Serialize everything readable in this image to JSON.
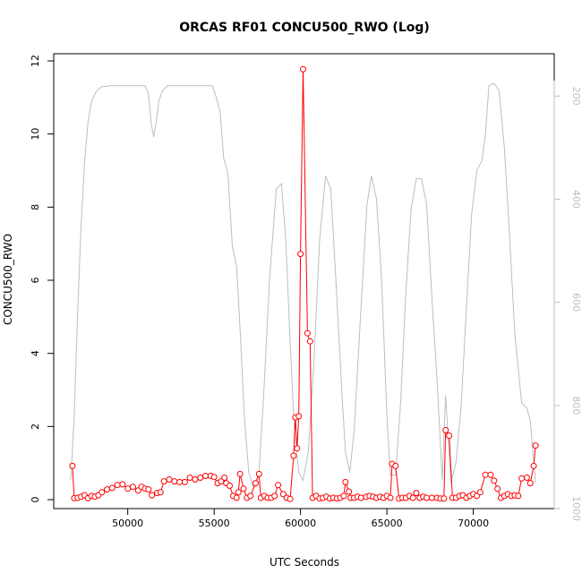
{
  "chart_data": {
    "type": "line",
    "title": "ORCAS RF01 CONCU500_RWO (Log)",
    "xlabel": "UTC Seconds",
    "ylabel": "CONCU500_RWO",
    "xlim": [
      46500,
      74000
    ],
    "ylim": [
      0,
      12
    ],
    "y2lim": [
      1000,
      170
    ],
    "y2_inverted": true,
    "x_ticks": [
      50000,
      55000,
      60000,
      65000,
      70000
    ],
    "y_ticks": [
      0,
      2,
      4,
      6,
      8,
      10,
      12
    ],
    "y2_ticks": [
      200,
      400,
      600,
      800,
      1000
    ],
    "grid": false,
    "colors": {
      "primary": "#ff0000",
      "secondary": "#bebebe",
      "axis": "#000000"
    },
    "series": [
      {
        "axis": "left",
        "style": "points-connected",
        "color": "#ff0000",
        "points": [
          [
            46800,
            0.92
          ],
          [
            46900,
            0.04
          ],
          [
            47100,
            0.05
          ],
          [
            47300,
            0.08
          ],
          [
            47500,
            0.12
          ],
          [
            47700,
            0.04
          ],
          [
            47900,
            0.1
          ],
          [
            48100,
            0.08
          ],
          [
            48300,
            0.12
          ],
          [
            48500,
            0.2
          ],
          [
            48800,
            0.28
          ],
          [
            49100,
            0.32
          ],
          [
            49400,
            0.4
          ],
          [
            49700,
            0.42
          ],
          [
            50000,
            0.3
          ],
          [
            50300,
            0.35
          ],
          [
            50600,
            0.25
          ],
          [
            50800,
            0.35
          ],
          [
            51000,
            0.3
          ],
          [
            51200,
            0.28
          ],
          [
            51400,
            0.12
          ],
          [
            51700,
            0.18
          ],
          [
            51900,
            0.2
          ],
          [
            52100,
            0.5
          ],
          [
            52400,
            0.55
          ],
          [
            52700,
            0.5
          ],
          [
            53000,
            0.48
          ],
          [
            53300,
            0.48
          ],
          [
            53600,
            0.6
          ],
          [
            53900,
            0.55
          ],
          [
            54200,
            0.6
          ],
          [
            54500,
            0.65
          ],
          [
            54800,
            0.65
          ],
          [
            55000,
            0.62
          ],
          [
            55200,
            0.45
          ],
          [
            55400,
            0.5
          ],
          [
            55600,
            0.6
          ],
          [
            55700,
            0.45
          ],
          [
            55900,
            0.38
          ],
          [
            56100,
            0.1
          ],
          [
            56300,
            0.05
          ],
          [
            56400,
            0.2
          ],
          [
            56500,
            0.7
          ],
          [
            56700,
            0.3
          ],
          [
            56900,
            0.05
          ],
          [
            57100,
            0.1
          ],
          [
            57400,
            0.45
          ],
          [
            57600,
            0.7
          ],
          [
            57700,
            0.05
          ],
          [
            57900,
            0.1
          ],
          [
            58100,
            0.05
          ],
          [
            58300,
            0.05
          ],
          [
            58500,
            0.1
          ],
          [
            58700,
            0.4
          ],
          [
            59000,
            0.15
          ],
          [
            59200,
            0.05
          ],
          [
            59400,
            0.02
          ],
          [
            59600,
            1.2
          ],
          [
            59700,
            2.25
          ],
          [
            59800,
            1.4
          ],
          [
            59900,
            2.28
          ],
          [
            60000,
            6.72
          ],
          [
            60150,
            11.77
          ],
          [
            60400,
            4.55
          ],
          [
            60550,
            4.33
          ],
          [
            60700,
            0.05
          ],
          [
            60900,
            0.1
          ],
          [
            61100,
            0.03
          ],
          [
            61300,
            0.05
          ],
          [
            61500,
            0.08
          ],
          [
            61700,
            0.03
          ],
          [
            61900,
            0.05
          ],
          [
            62100,
            0.03
          ],
          [
            62300,
            0.05
          ],
          [
            62500,
            0.1
          ],
          [
            62600,
            0.48
          ],
          [
            62800,
            0.22
          ],
          [
            62900,
            0.05
          ],
          [
            63100,
            0.05
          ],
          [
            63300,
            0.08
          ],
          [
            63500,
            0.05
          ],
          [
            63800,
            0.08
          ],
          [
            64000,
            0.1
          ],
          [
            64200,
            0.08
          ],
          [
            64400,
            0.05
          ],
          [
            64600,
            0.08
          ],
          [
            64800,
            0.05
          ],
          [
            65000,
            0.1
          ],
          [
            65200,
            0.05
          ],
          [
            65300,
            0.98
          ],
          [
            65500,
            0.92
          ],
          [
            65700,
            0.03
          ],
          [
            65900,
            0.05
          ],
          [
            66100,
            0.05
          ],
          [
            66300,
            0.1
          ],
          [
            66500,
            0.05
          ],
          [
            66700,
            0.18
          ],
          [
            66900,
            0.05
          ],
          [
            67100,
            0.08
          ],
          [
            67300,
            0.05
          ],
          [
            67600,
            0.05
          ],
          [
            67900,
            0.05
          ],
          [
            68100,
            0.03
          ],
          [
            68300,
            0.03
          ],
          [
            68400,
            1.9
          ],
          [
            68600,
            1.75
          ],
          [
            68800,
            0.05
          ],
          [
            69000,
            0.05
          ],
          [
            69200,
            0.1
          ],
          [
            69400,
            0.12
          ],
          [
            69600,
            0.05
          ],
          [
            69800,
            0.1
          ],
          [
            70000,
            0.15
          ],
          [
            70200,
            0.1
          ],
          [
            70400,
            0.2
          ],
          [
            70700,
            0.68
          ],
          [
            71000,
            0.68
          ],
          [
            71200,
            0.52
          ],
          [
            71400,
            0.3
          ],
          [
            71600,
            0.05
          ],
          [
            71800,
            0.1
          ],
          [
            72000,
            0.15
          ],
          [
            72200,
            0.1
          ],
          [
            72400,
            0.12
          ],
          [
            72600,
            0.1
          ],
          [
            72800,
            0.58
          ],
          [
            73100,
            0.6
          ],
          [
            73300,
            0.45
          ],
          [
            73500,
            0.92
          ],
          [
            73600,
            1.48
          ]
        ]
      },
      {
        "axis": "right",
        "style": "line",
        "color": "#bebebe",
        "points": [
          [
            46700,
            945
          ],
          [
            46900,
            820
          ],
          [
            47100,
            620
          ],
          [
            47300,
            450
          ],
          [
            47500,
            330
          ],
          [
            47700,
            250
          ],
          [
            47900,
            210
          ],
          [
            48200,
            190
          ],
          [
            48500,
            182
          ],
          [
            49000,
            180
          ],
          [
            50000,
            180
          ],
          [
            51000,
            180
          ],
          [
            51200,
            195
          ],
          [
            51350,
            250
          ],
          [
            51500,
            280
          ],
          [
            51650,
            250
          ],
          [
            51800,
            210
          ],
          [
            52000,
            190
          ],
          [
            52300,
            180
          ],
          [
            53000,
            180
          ],
          [
            54000,
            180
          ],
          [
            54900,
            180
          ],
          [
            55100,
            200
          ],
          [
            55350,
            230
          ],
          [
            55550,
            320
          ],
          [
            55800,
            350
          ],
          [
            56050,
            490
          ],
          [
            56300,
            530
          ],
          [
            56500,
            650
          ],
          [
            56750,
            820
          ],
          [
            57000,
            930
          ],
          [
            57300,
            960
          ],
          [
            57600,
            930
          ],
          [
            57900,
            760
          ],
          [
            58200,
            560
          ],
          [
            58600,
            380
          ],
          [
            58900,
            370
          ],
          [
            59150,
            480
          ],
          [
            59400,
            680
          ],
          [
            59650,
            850
          ],
          [
            59900,
            930
          ],
          [
            60150,
            945
          ],
          [
            60450,
            890
          ],
          [
            60800,
            700
          ],
          [
            61100,
            480
          ],
          [
            61450,
            355
          ],
          [
            61750,
            380
          ],
          [
            62050,
            560
          ],
          [
            62400,
            780
          ],
          [
            62600,
            890
          ],
          [
            62850,
            930
          ],
          [
            63100,
            850
          ],
          [
            63500,
            610
          ],
          [
            63850,
            410
          ],
          [
            64100,
            355
          ],
          [
            64400,
            400
          ],
          [
            64700,
            560
          ],
          [
            65000,
            820
          ],
          [
            65200,
            935
          ],
          [
            65500,
            935
          ],
          [
            65800,
            790
          ],
          [
            66100,
            580
          ],
          [
            66400,
            420
          ],
          [
            66700,
            360
          ],
          [
            67000,
            360
          ],
          [
            67300,
            410
          ],
          [
            67600,
            590
          ],
          [
            67900,
            750
          ],
          [
            68200,
            945
          ],
          [
            68400,
            780
          ],
          [
            68700,
            950
          ],
          [
            69000,
            910
          ],
          [
            69300,
            800
          ],
          [
            69600,
            610
          ],
          [
            69900,
            430
          ],
          [
            70200,
            345
          ],
          [
            70500,
            325
          ],
          [
            70700,
            275
          ],
          [
            70900,
            180
          ],
          [
            71200,
            175
          ],
          [
            71500,
            190
          ],
          [
            71800,
            300
          ],
          [
            72100,
            470
          ],
          [
            72400,
            660
          ],
          [
            72800,
            795
          ],
          [
            73100,
            805
          ],
          [
            73300,
            830
          ],
          [
            73600,
            950
          ]
        ]
      }
    ]
  }
}
